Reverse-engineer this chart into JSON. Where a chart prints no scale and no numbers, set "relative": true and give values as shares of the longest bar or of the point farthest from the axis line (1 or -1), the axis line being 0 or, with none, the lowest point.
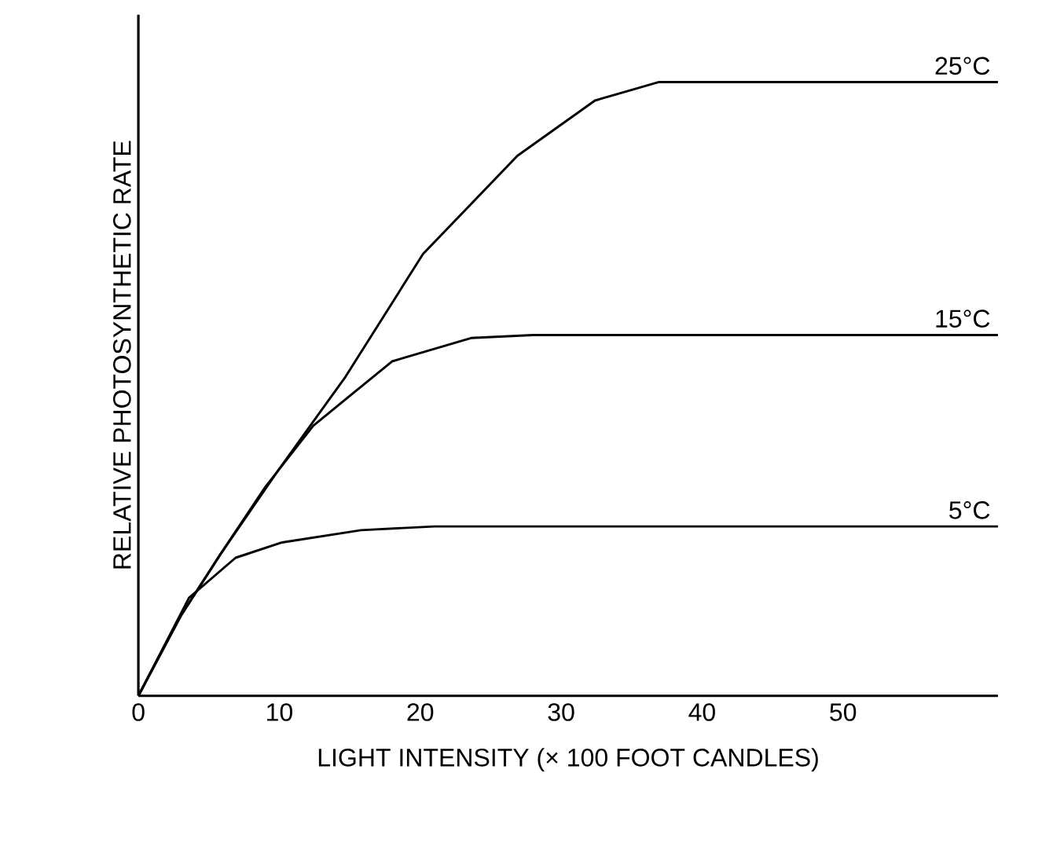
{
  "chart_data": {
    "type": "line",
    "relative": true,
    "xlabel": "LIGHT INTENSITY (× 100 FOOT CANDLES)",
    "ylabel": "RELATIVE PHOTOSYNTHETIC RATE",
    "xlim": [
      0,
      61
    ],
    "xticks": [
      0,
      10,
      20,
      30,
      40,
      50
    ],
    "series": [
      {
        "name": "25°C",
        "color": "#000000",
        "x": [
          0,
          3,
          5.8,
          10,
          14.7,
          20.2,
          26.9,
          32.4,
          36.9,
          45,
          61
        ],
        "values": [
          0,
          0.13,
          0.23,
          0.37,
          0.52,
          0.72,
          0.88,
          0.97,
          1.0,
          1.0,
          1.0
        ]
      },
      {
        "name": "15°C",
        "color": "#000000",
        "x": [
          0,
          3,
          5.8,
          9,
          12.4,
          18,
          23.6,
          28,
          40,
          61
        ],
        "values": [
          0,
          0.13,
          0.23,
          0.34,
          0.44,
          0.545,
          0.583,
          0.588,
          0.588,
          0.588
        ]
      },
      {
        "name": "5°C",
        "color": "#000000",
        "x": [
          0,
          3.6,
          6.9,
          10.2,
          15.8,
          21,
          40,
          61
        ],
        "values": [
          0,
          0.16,
          0.225,
          0.25,
          0.27,
          0.276,
          0.276,
          0.276
        ]
      }
    ]
  }
}
